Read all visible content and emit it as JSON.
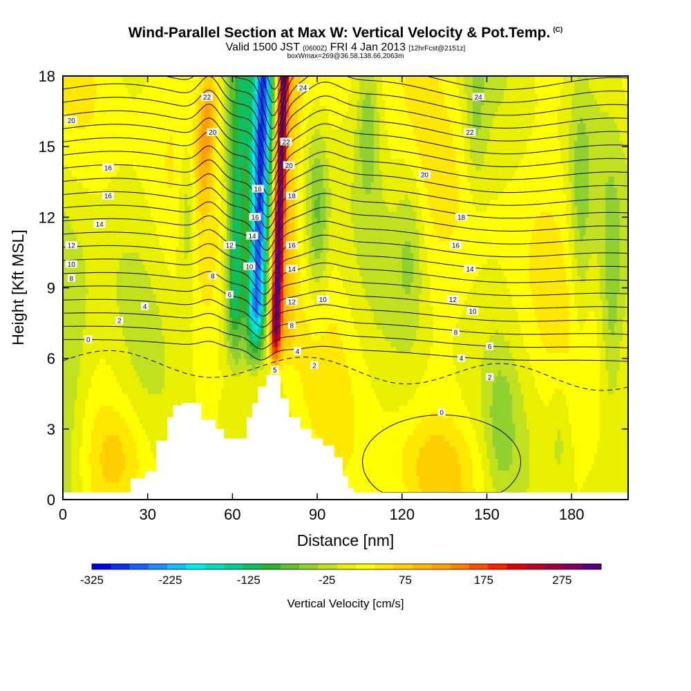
{
  "chart_data": {
    "type": "heatmap",
    "title": "Wind-Parallel Section at Max W: Vertical Velocity & Pot.Temp.",
    "copyright": "(C)",
    "valid_main": "Valid 1500 JST",
    "valid_z": "(0600Z)",
    "valid_date": "FRI 4 Jan 2013",
    "valid_fcst": "[12hrFcst@2151z]",
    "box_info": "boxWmax=269@36.58,138.66,2063m",
    "xlabel": "Distance [nm]",
    "ylabel": "Height [Kft MSL]",
    "xlim": [
      0,
      200
    ],
    "ylim": [
      0,
      18
    ],
    "xticks": [
      "0",
      "30",
      "60",
      "90",
      "120",
      "150",
      "180"
    ],
    "yticks": [
      "0",
      "3",
      "6",
      "9",
      "12",
      "15",
      "18"
    ],
    "terrain": [
      [
        22,
        0.3
      ],
      [
        24,
        0.9
      ],
      [
        29,
        1.2
      ],
      [
        33,
        2.5
      ],
      [
        37,
        3.5
      ],
      [
        39,
        4.0
      ],
      [
        42,
        4.1
      ],
      [
        45,
        4.1
      ],
      [
        49,
        3.4
      ],
      [
        54,
        3.0
      ],
      [
        57,
        2.6
      ],
      [
        62,
        2.6
      ],
      [
        65,
        3.5
      ],
      [
        67,
        4.1
      ],
      [
        69,
        4.8
      ],
      [
        72,
        5.3
      ],
      [
        75,
        5.3
      ],
      [
        77,
        4.3
      ],
      [
        80,
        3.5
      ],
      [
        84,
        3.0
      ],
      [
        88,
        2.6
      ],
      [
        92,
        2.3
      ],
      [
        96,
        1.8
      ],
      [
        99,
        1.0
      ],
      [
        101,
        0.5
      ],
      [
        103,
        0.3
      ]
    ],
    "velocity_features": [
      {
        "x": 68,
        "y": 15,
        "value": -225,
        "label": "downdraft core"
      },
      {
        "x": 78,
        "y": 14,
        "value": 275,
        "label": "updraft core"
      },
      {
        "x": 50,
        "y": 16,
        "value": 75,
        "label": "upper updraft band"
      },
      {
        "x": 132,
        "y": 1.5,
        "value": 25,
        "label": "low-level yellow cell"
      }
    ],
    "theta_contours": {
      "interval": 1,
      "labels": [
        {
          "text": "0",
          "x": 9,
          "y": 6.8
        },
        {
          "text": "2",
          "x": 20,
          "y": 7.6
        },
        {
          "text": "4",
          "x": 29,
          "y": 8.2
        },
        {
          "text": "8",
          "x": 3,
          "y": 9.4
        },
        {
          "text": "10",
          "x": 3,
          "y": 10.0
        },
        {
          "text": "12",
          "x": 3,
          "y": 10.8
        },
        {
          "text": "14",
          "x": 13,
          "y": 11.7
        },
        {
          "text": "16",
          "x": 16,
          "y": 12.9
        },
        {
          "text": "16",
          "x": 16,
          "y": 14.1
        },
        {
          "text": "20",
          "x": 3,
          "y": 16.1
        },
        {
          "text": "22",
          "x": 51,
          "y": 17.1
        },
        {
          "text": "20",
          "x": 53,
          "y": 15.6
        },
        {
          "text": "12",
          "x": 59,
          "y": 10.8
        },
        {
          "text": "8",
          "x": 53,
          "y": 9.5
        },
        {
          "text": "6",
          "x": 59,
          "y": 8.7
        },
        {
          "text": "16",
          "x": 69,
          "y": 13.2
        },
        {
          "text": "16",
          "x": 68,
          "y": 12.0
        },
        {
          "text": "14",
          "x": 67,
          "y": 11.2
        },
        {
          "text": "10",
          "x": 66,
          "y": 9.9
        },
        {
          "text": "24",
          "x": 85,
          "y": 17.5
        },
        {
          "text": "22",
          "x": 79,
          "y": 15.2
        },
        {
          "text": "20",
          "x": 80,
          "y": 14.2
        },
        {
          "text": "18",
          "x": 81,
          "y": 12.9
        },
        {
          "text": "16",
          "x": 81,
          "y": 10.8
        },
        {
          "text": "14",
          "x": 81,
          "y": 9.8
        },
        {
          "text": "12",
          "x": 81,
          "y": 8.4
        },
        {
          "text": "8",
          "x": 81,
          "y": 7.4
        },
        {
          "text": "4",
          "x": 83,
          "y": 6.3
        },
        {
          "text": "5",
          "x": 75,
          "y": 5.5
        },
        {
          "text": "2",
          "x": 89,
          "y": 5.7
        },
        {
          "text": "10",
          "x": 92,
          "y": 8.5
        },
        {
          "text": "24",
          "x": 147,
          "y": 17.1
        },
        {
          "text": "22",
          "x": 144,
          "y": 15.6
        },
        {
          "text": "20",
          "x": 128,
          "y": 13.8
        },
        {
          "text": "18",
          "x": 141,
          "y": 12.0
        },
        {
          "text": "16",
          "x": 139,
          "y": 10.8
        },
        {
          "text": "14",
          "x": 144,
          "y": 9.8
        },
        {
          "text": "12",
          "x": 138,
          "y": 8.5
        },
        {
          "text": "10",
          "x": 145,
          "y": 8.0
        },
        {
          "text": "8",
          "x": 139,
          "y": 7.1
        },
        {
          "text": "6",
          "x": 151,
          "y": 6.5
        },
        {
          "text": "4",
          "x": 141,
          "y": 6.0
        },
        {
          "text": "2",
          "x": 151,
          "y": 5.2
        },
        {
          "text": "0",
          "x": 134,
          "y": 3.7
        }
      ]
    },
    "colorbar": {
      "label": "Vertical Velocity [cm/s]",
      "tick_labels": [
        "-325",
        "-225",
        "-125",
        "-25",
        "75",
        "175",
        "275"
      ],
      "colors": [
        "#0000ee",
        "#0a30f5",
        "#1a60ff",
        "#1a90ff",
        "#10c0ff",
        "#00ecf0",
        "#00e0c0",
        "#00d090",
        "#10c060",
        "#30b030",
        "#60c030",
        "#90d030",
        "#c0e020",
        "#e8f000",
        "#ffff00",
        "#ffe800",
        "#ffd000",
        "#ffb800",
        "#ffa000",
        "#ff8000",
        "#ff5000",
        "#ff2000",
        "#e00000",
        "#c00020",
        "#a00040",
        "#800060",
        "#500080"
      ]
    },
    "grid": false,
    "legend": "bottom"
  }
}
